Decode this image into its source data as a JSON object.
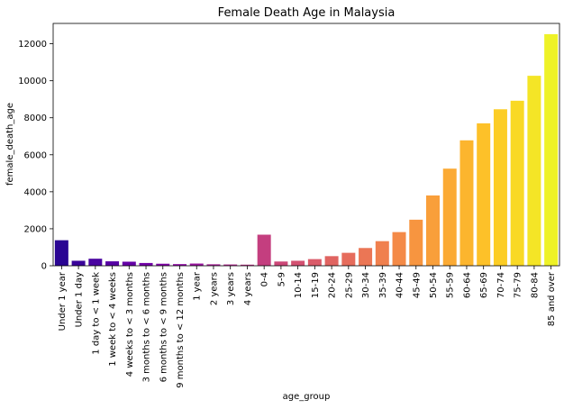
{
  "chart_data": {
    "type": "bar",
    "title": "Female Death Age in Malaysia",
    "xlabel": "age_group",
    "ylabel": "female_death_age",
    "ylim": [
      0,
      13100
    ],
    "yticks": [
      0,
      2000,
      4000,
      6000,
      8000,
      10000,
      12000
    ],
    "ytick_labels": [
      "0",
      "2000",
      "4000",
      "6000",
      "8000",
      "10000",
      "12000"
    ],
    "grid": false,
    "palette": "plasma",
    "categories": [
      "Under 1 year",
      "Under 1 day",
      "1 day to < 1 week",
      "1 week to < 4 weeks",
      "4 weeks to < 3 months",
      "3 months to < 6 months",
      "6 months to < 9 months",
      "9 months to < 12 months",
      "1 year",
      "2 years",
      "3 years",
      "4 years",
      "0-4",
      "5-9",
      "10-14",
      "15-19",
      "20-24",
      "25-29",
      "30-34",
      "35-39",
      "40-44",
      "45-49",
      "50-54",
      "55-59",
      "60-64",
      "65-69",
      "70-74",
      "75-79",
      "80-84",
      "85 and over"
    ],
    "values": [
      1380,
      270,
      380,
      240,
      220,
      150,
      110,
      90,
      120,
      80,
      70,
      60,
      1680,
      230,
      270,
      360,
      520,
      700,
      960,
      1330,
      1820,
      2490,
      3800,
      5250,
      6780,
      7700,
      8460,
      8920,
      10270,
      12520
    ],
    "colors": [
      "#2a0593",
      "#3a049a",
      "#4903a0",
      "#5701a4",
      "#6500a7",
      "#7301a8",
      "#8104a7",
      "#8e0ca4",
      "#9a169f",
      "#a62098",
      "#b12a90",
      "#bb3488",
      "#c43e7f",
      "#cc4778",
      "#d35171",
      "#da5b69",
      "#e06461",
      "#e66c5c",
      "#eb7655",
      "#f0804e",
      "#f48a47",
      "#f79540",
      "#f99f3a",
      "#fbaa34",
      "#fcb52e",
      "#fdc129",
      "#fccd25",
      "#f9d924",
      "#f4e526",
      "#eef227"
    ]
  }
}
